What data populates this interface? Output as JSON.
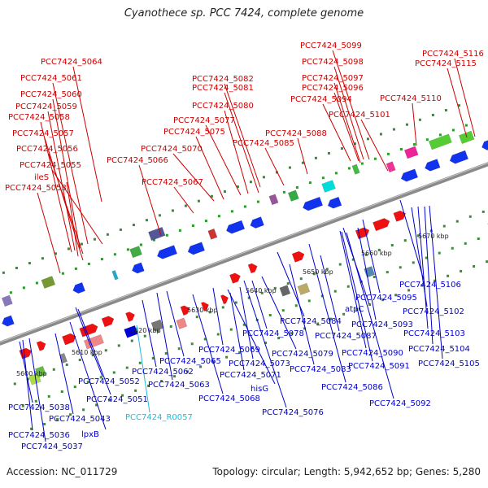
{
  "title": "Cyanothece sp. PCC 7424, complete genome",
  "footer": {
    "accession": "Accession: NC_011729",
    "summary": "Topology: circular; Length: 5,942,652 bp; Genes: 5,280"
  },
  "colors": {
    "forward_label": "#cc0000",
    "reverse_label": "#0000cc",
    "rna_label": "#22bbdd",
    "backbone": "#8a8a8a"
  },
  "scale_ticks": [
    "5600 kbp",
    "5610 kbp",
    "5620 kbp",
    "5630 kbp",
    "5640 kbp",
    "5650 kbp",
    "5660 kbp",
    "5670 kbp"
  ],
  "top_labels": [
    "PCC7424_5064",
    "PCC7424_5061",
    "PCC7424_5060",
    "PCC7424_5059",
    "PCC7424_5058",
    "PCC7424_5057",
    "PCC7424_5056",
    "PCC7424_5055",
    "ileS",
    "PCC7424_5053",
    "PCC7424_5066",
    "PCC7424_5067",
    "PCC7424_5070",
    "PCC7424_5075",
    "PCC7424_5077",
    "PCC7424_5080",
    "PCC7424_5081",
    "PCC7424_5082",
    "PCC7424_5085",
    "PCC7424_5088",
    "PCC7424_5094",
    "PCC7424_5096",
    "PCC7424_5097",
    "PCC7424_5098",
    "PCC7424_5099",
    "PCC7424_5101",
    "PCC7424_5110",
    "PCC7424_5115",
    "PCC7424_5116"
  ],
  "bottom_labels": [
    "PCC7424_5106",
    "PCC7424_5095",
    "atpC",
    "PCC7424_5102",
    "PCC7424_5093",
    "PCC7424_5084",
    "PCC7424_5087",
    "PCC7424_5103",
    "PCC7424_5078",
    "PCC7424_5079",
    "PCC7424_5090",
    "PCC7424_5104",
    "PCC7424_5069",
    "PCC7424_5091",
    "PCC7424_5105",
    "PCC7424_5065",
    "PCC7424_5073",
    "PCC7424_5083",
    "PCC7424_5062",
    "PCC7424_5071",
    "PCC7424_5086",
    "PCC7424_5052",
    "PCC7424_5063",
    "hisG",
    "PCC7424_5051",
    "PCC7424_5068",
    "PCC7424_5092",
    "PCC7424_5038",
    "PCC7424_R0057",
    "PCC7424_5043",
    "PCC7424_5076",
    "PCC7424_5036",
    "lpxB",
    "PCC7424_5037"
  ]
}
